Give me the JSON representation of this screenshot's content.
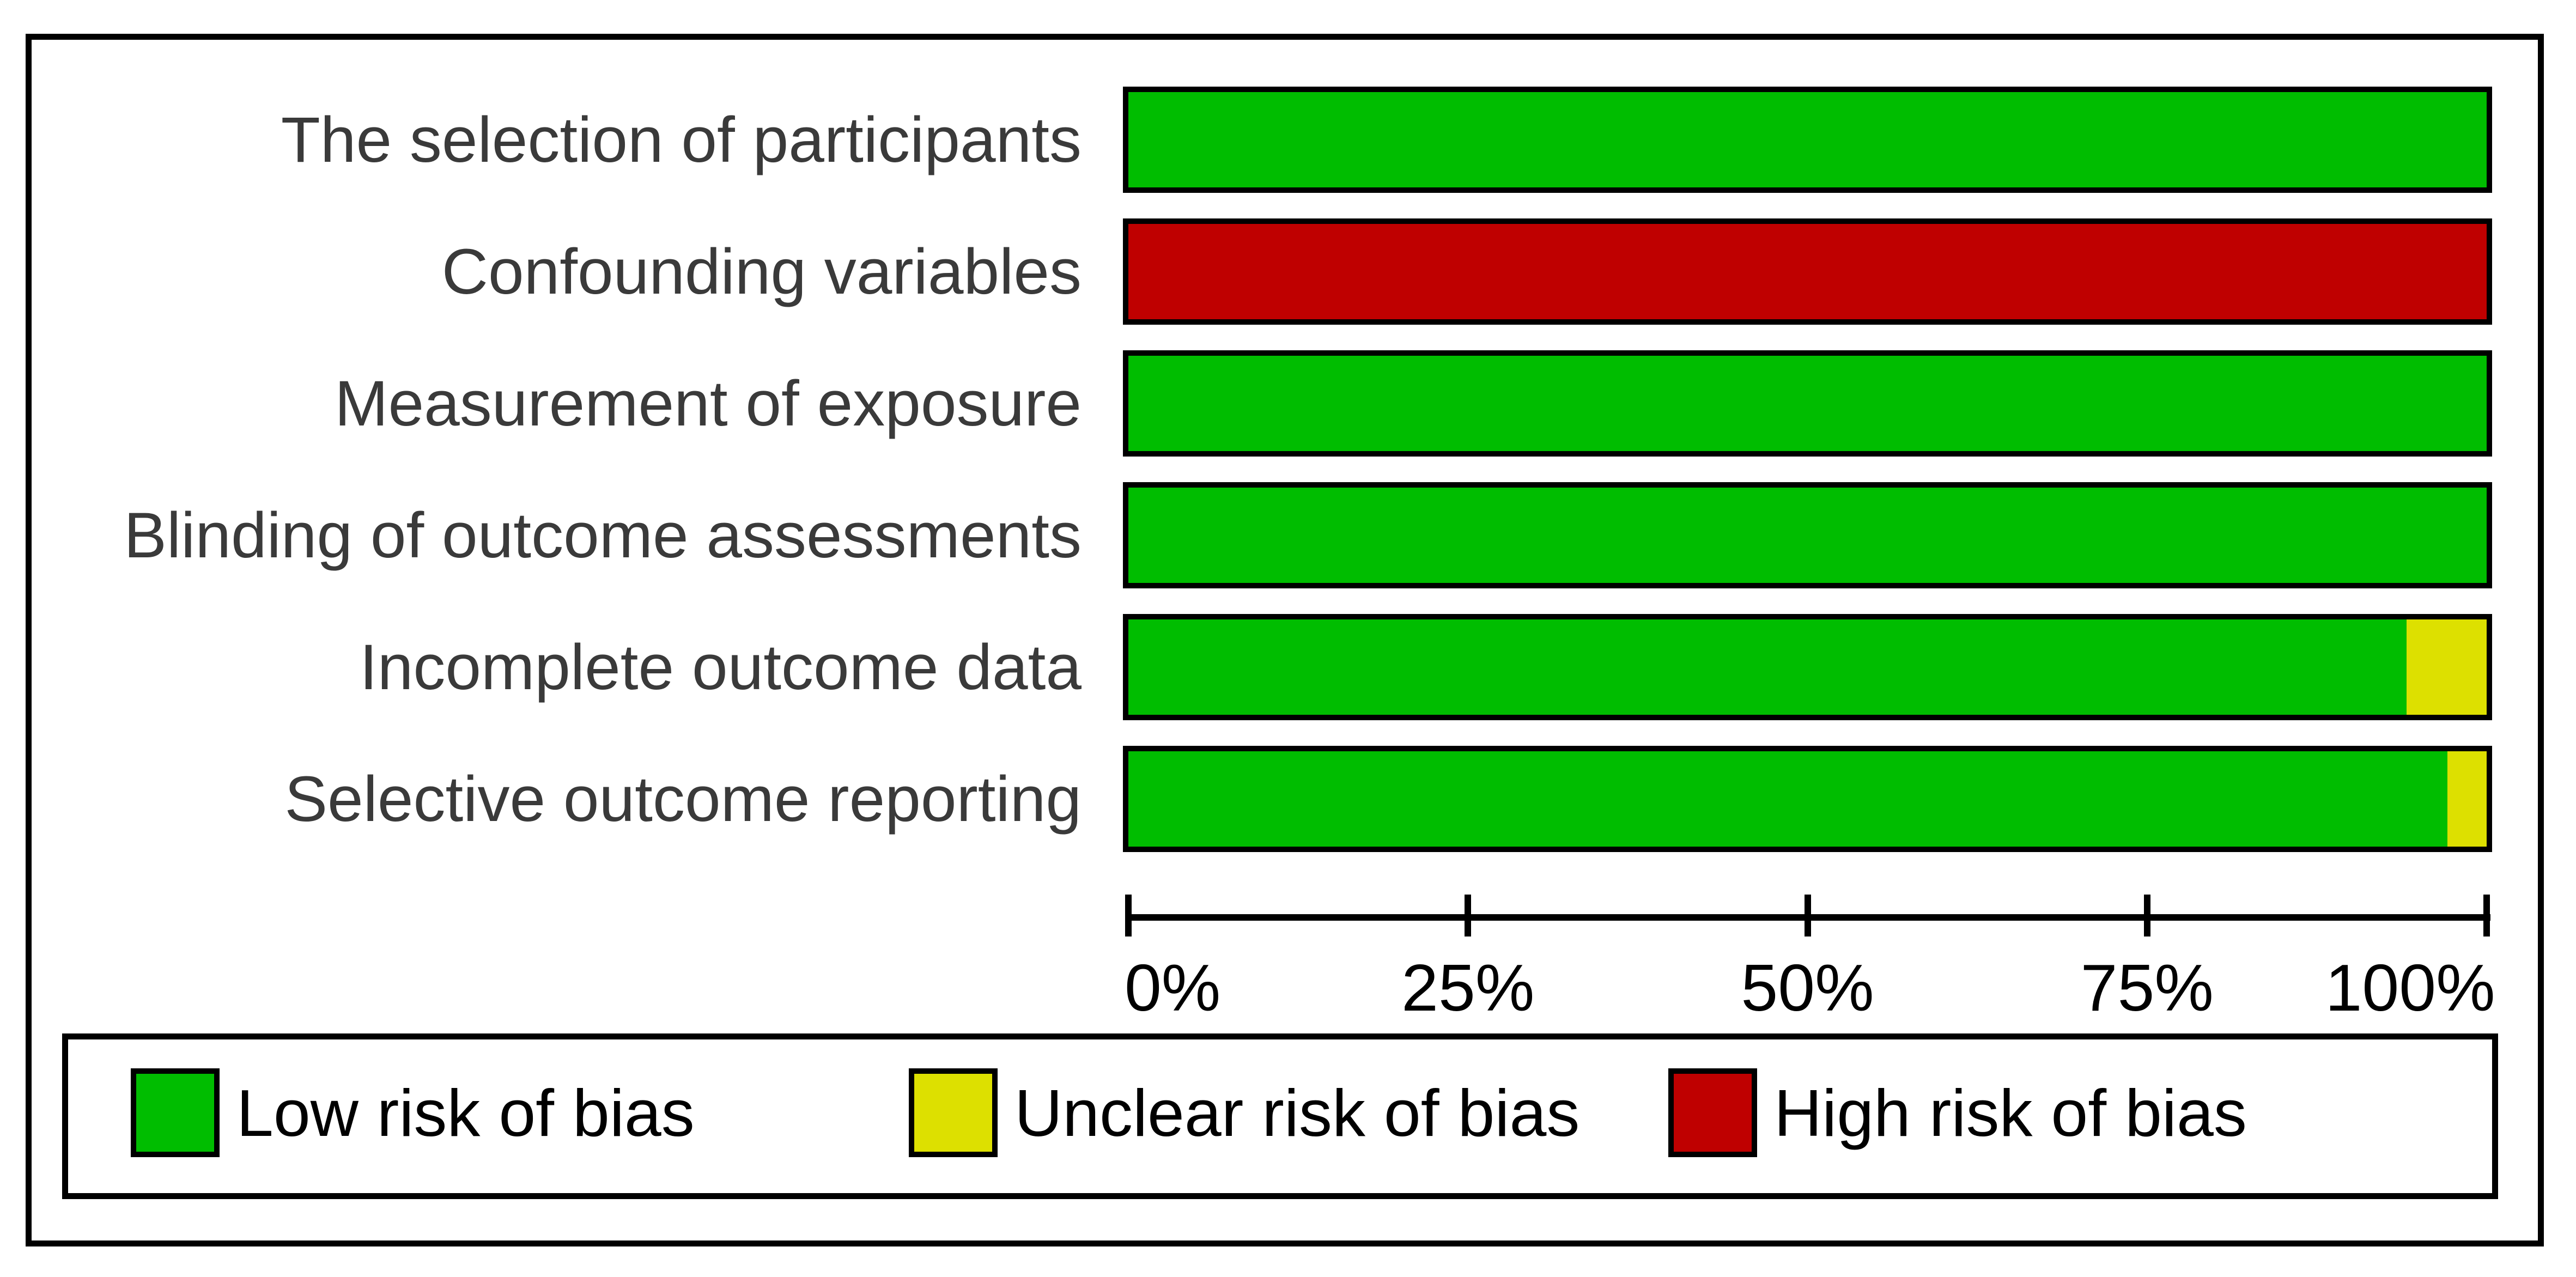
{
  "chart_data": {
    "type": "bar",
    "orientation": "horizontal",
    "stacked": true,
    "title": "",
    "xlabel": "",
    "ylabel": "",
    "categories": [
      "The selection of participants",
      "Confounding variables",
      "Measurement of exposure",
      "Blinding of outcome assessments",
      "Incomplete outcome data",
      "Selective outcome reporting"
    ],
    "series": [
      {
        "name": "Low risk of bias",
        "color": "#00bd00",
        "values": [
          100,
          0,
          100,
          100,
          94.1,
          97.1
        ]
      },
      {
        "name": "Unclear risk of bias",
        "color": "#dde000",
        "values": [
          0,
          0,
          0,
          0,
          5.9,
          2.9
        ]
      },
      {
        "name": "High risk of bias",
        "color": "#bf0000",
        "values": [
          0,
          100,
          0,
          0,
          0,
          0
        ]
      }
    ],
    "x_ticks": [
      "0%",
      "25%",
      "50%",
      "75%",
      "100%"
    ],
    "xlim": [
      0,
      100
    ],
    "grid": false,
    "legend_position": "bottom"
  },
  "legend": {
    "items": [
      {
        "label": "Low risk of bias",
        "color": "#00bd00"
      },
      {
        "label": "Unclear risk of bias",
        "color": "#dde000"
      },
      {
        "label": "High risk of bias",
        "color": "#bf0000"
      }
    ]
  },
  "colors": {
    "bar_border": "#000000",
    "frame_border": "#000000",
    "row_label_text": "#3a3a3a",
    "axis_text": "#000000",
    "legend_text": "#000000",
    "background": "#ffffff"
  }
}
